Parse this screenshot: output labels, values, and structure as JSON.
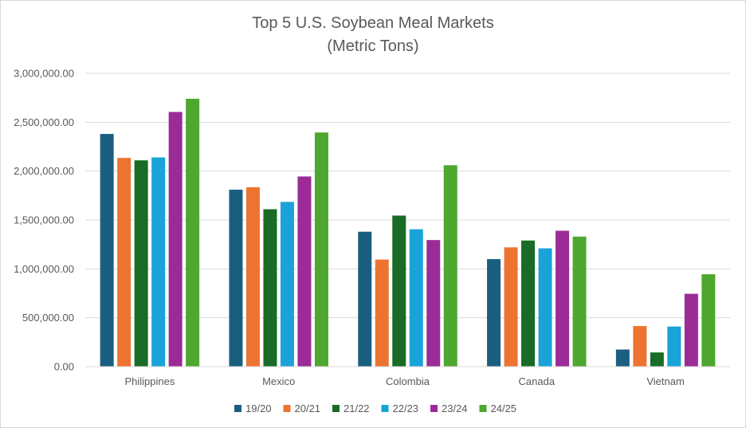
{
  "chart_data": {
    "type": "bar",
    "title": "Top 5 U.S. Soybean Meal Markets",
    "subtitle": "(Metric Tons)",
    "categories": [
      "Philippines",
      "Mexico",
      "Colombia",
      "Canada",
      "Vietnam"
    ],
    "series": [
      {
        "name": "19/20",
        "color": "#1a5f7f",
        "values": [
          2380000,
          1810000,
          1380000,
          1100000,
          175000
        ]
      },
      {
        "name": "20/21",
        "color": "#ed7430",
        "values": [
          2135000,
          1835000,
          1095000,
          1220000,
          415000
        ]
      },
      {
        "name": "21/22",
        "color": "#196b25",
        "values": [
          2110000,
          1610000,
          1545000,
          1290000,
          145000
        ]
      },
      {
        "name": "22/23",
        "color": "#1aa3d9",
        "values": [
          2140000,
          1685000,
          1405000,
          1210000,
          410000
        ]
      },
      {
        "name": "23/24",
        "color": "#9b2c97",
        "values": [
          2605000,
          1945000,
          1295000,
          1390000,
          745000
        ]
      },
      {
        "name": "24/25",
        "color": "#4ea72e",
        "values": [
          2740000,
          2395000,
          2060000,
          1330000,
          945000
        ]
      }
    ],
    "yticks": [
      "0.00",
      "500,000.00",
      "1,000,000.00",
      "1,500,000.00",
      "2,000,000.00",
      "2,500,000.00",
      "3,000,000.00"
    ],
    "ylim": [
      0,
      3000000
    ],
    "xlabel": "",
    "ylabel": "",
    "grid": true,
    "legend_position": "bottom"
  }
}
